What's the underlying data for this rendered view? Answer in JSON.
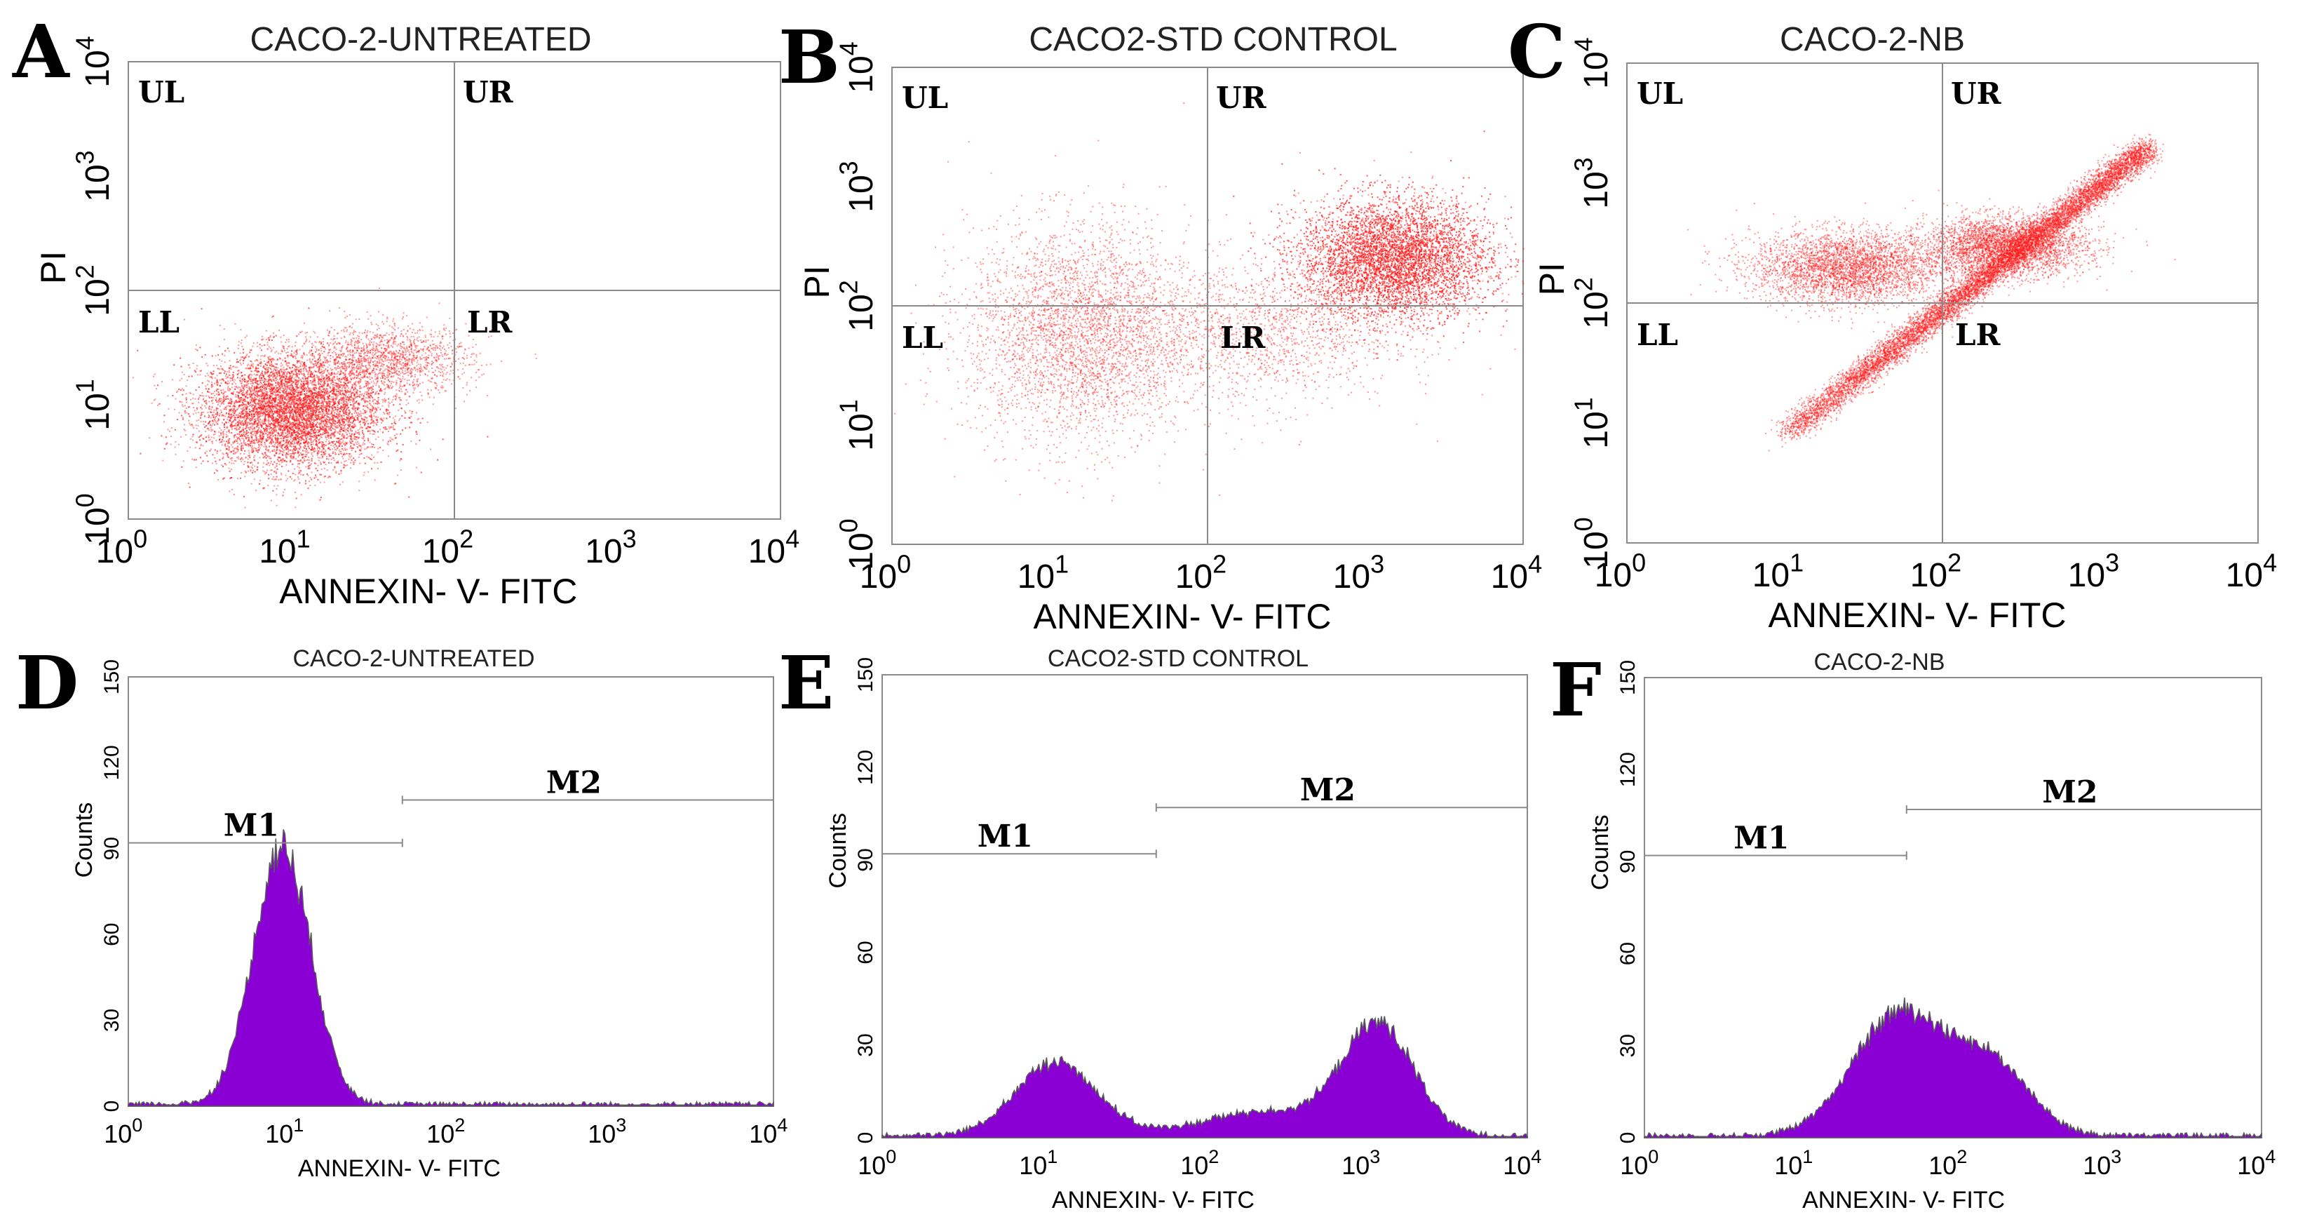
{
  "chart_data": [
    {
      "panel": "A",
      "type": "scatter",
      "title": "CACO-2-UNTREATED",
      "xlabel": "ANNEXIN- V- FITC",
      "ylabel": "PI",
      "x_scale": "log",
      "y_scale": "log",
      "xlim": [
        1,
        10000
      ],
      "ylim": [
        1,
        10000
      ],
      "quadrant_divider": {
        "x": 100,
        "y": 100
      },
      "quadrant_labels": [
        "UL",
        "UR",
        "LL",
        "LR"
      ],
      "point_color": "#ff1a1a",
      "clusters": [
        {
          "center_x": 10,
          "center_y": 9,
          "spread_x_decades": 0.28,
          "spread_y_decades": 0.25,
          "density": "high"
        },
        {
          "center_x": 40,
          "center_y": 25,
          "spread_x_decades": 0.25,
          "spread_y_decades": 0.15,
          "density": "low"
        }
      ]
    },
    {
      "panel": "B",
      "type": "scatter",
      "title": "CACO2-STD CONTROL",
      "xlabel": "ANNEXIN- V- FITC",
      "ylabel": "PI",
      "x_scale": "log",
      "y_scale": "log",
      "xlim": [
        1,
        10000
      ],
      "ylim": [
        1,
        10000
      ],
      "quadrant_divider": {
        "x": 100,
        "y": 100
      },
      "quadrant_labels": [
        "UL",
        "UR",
        "LL",
        "LR"
      ],
      "point_color": "#ff1a1a",
      "clusters": [
        {
          "center_x": 15,
          "center_y": 60,
          "spread_x_decades": 0.35,
          "spread_y_decades": 0.45,
          "density": "medium"
        },
        {
          "center_x": 1500,
          "center_y": 250,
          "spread_x_decades": 0.3,
          "spread_y_decades": 0.25,
          "density": "high"
        },
        {
          "center_x": 200,
          "center_y": 60,
          "spread_x_decades": 0.45,
          "spread_y_decades": 0.3,
          "density": "low"
        }
      ]
    },
    {
      "panel": "C",
      "type": "scatter",
      "title": "CACO-2-NB",
      "xlabel": "ANNEXIN- V- FITC",
      "ylabel": "PI",
      "x_scale": "log",
      "y_scale": "log",
      "xlim": [
        1,
        10000
      ],
      "ylim": [
        1,
        10000
      ],
      "quadrant_divider": {
        "x": 100,
        "y": 100
      },
      "quadrant_labels": [
        "UL",
        "UR",
        "LL",
        "LR"
      ],
      "point_color": "#ff1a1a",
      "clusters": [
        {
          "shape": "diagonal",
          "from_x": 10,
          "from_y": 8,
          "to_x": 2000,
          "to_y": 2000,
          "density": "high"
        },
        {
          "center_x": 25,
          "center_y": 200,
          "spread_x_decades": 0.3,
          "spread_y_decades": 0.15,
          "density": "medium"
        },
        {
          "center_x": 250,
          "center_y": 300,
          "spread_x_decades": 0.25,
          "spread_y_decades": 0.12,
          "density": "medium"
        }
      ]
    },
    {
      "panel": "D",
      "type": "area",
      "title": "CACO-2-UNTREATED",
      "xlabel": "ANNEXIN- V- FITC",
      "ylabel": "Counts",
      "x_scale": "log",
      "xlim": [
        1,
        10000
      ],
      "ylim": [
        0,
        150
      ],
      "yticks": [
        0,
        30,
        60,
        90,
        120,
        150
      ],
      "fill_color": "#8a00d4",
      "peaks": [
        {
          "x": 9,
          "height": 90,
          "width_decades": 0.18
        }
      ],
      "gates": [
        {
          "label": "M1",
          "from": 1,
          "to": 50,
          "y": 92
        },
        {
          "label": "M2",
          "from": 50,
          "to": 10000,
          "y": 107
        }
      ]
    },
    {
      "panel": "E",
      "type": "area",
      "title": "CACO2-STD CONTROL",
      "xlabel": "ANNEXIN- V- FITC",
      "ylabel": "Counts",
      "x_scale": "log",
      "xlim": [
        1,
        10000
      ],
      "ylim": [
        0,
        150
      ],
      "yticks": [
        0,
        30,
        60,
        90,
        120,
        150
      ],
      "fill_color": "#8a00d4",
      "peaks": [
        {
          "x": 12,
          "height": 24,
          "width_decades": 0.25
        },
        {
          "x": 1200,
          "height": 35,
          "width_decades": 0.22
        },
        {
          "x": 250,
          "height": 8,
          "width_decades": 0.4
        }
      ],
      "gates": [
        {
          "label": "M1",
          "from": 1,
          "to": 50,
          "y": 92
        },
        {
          "label": "M2",
          "from": 50,
          "to": 10000,
          "y": 107
        }
      ]
    },
    {
      "panel": "F",
      "type": "area",
      "title": "CACO-2-NB",
      "xlabel": "ANNEXIN- V- FITC",
      "ylabel": "Counts",
      "x_scale": "log",
      "xlim": [
        1,
        10000
      ],
      "ylim": [
        0,
        150
      ],
      "yticks": [
        0,
        30,
        60,
        90,
        120,
        150
      ],
      "fill_color": "#8a00d4",
      "peaks": [
        {
          "x": 45,
          "height": 40,
          "width_decades": 0.3
        },
        {
          "x": 180,
          "height": 22,
          "width_decades": 0.25
        }
      ],
      "gates": [
        {
          "label": "M1",
          "from": 1,
          "to": 50,
          "y": 92
        },
        {
          "label": "M2",
          "from": 50,
          "to": 10000,
          "y": 107
        }
      ]
    }
  ]
}
